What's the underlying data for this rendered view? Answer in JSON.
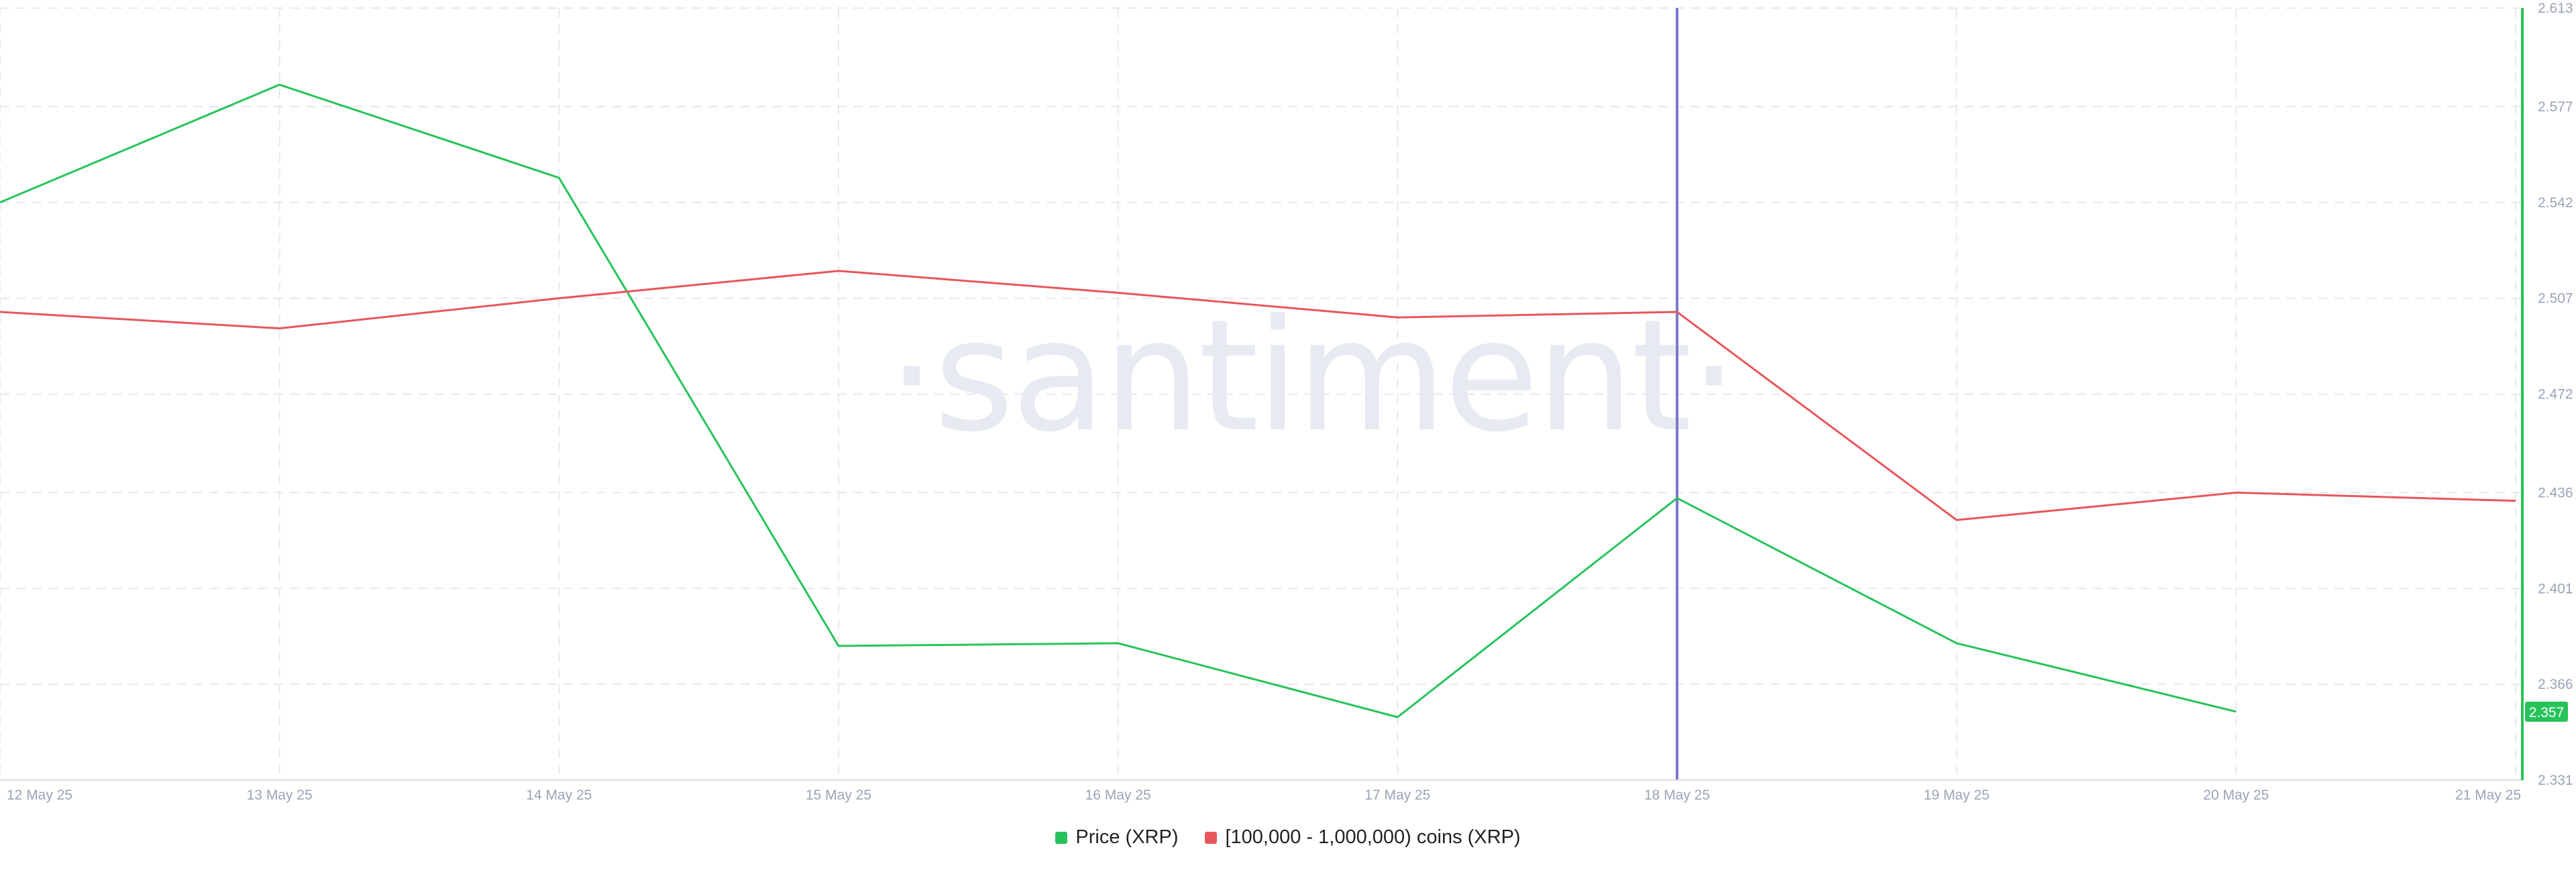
{
  "watermark": "·santiment·",
  "colors": {
    "price": "#26c35a",
    "holders": "#e8565a",
    "crosshair": "#7b77c9",
    "grid": "#e6e8ee",
    "badge": "#26c35a"
  },
  "legend": [
    {
      "label": "Price (XRP)",
      "color": "#26c35a"
    },
    {
      "label": "[100,000  - 1,000,000) coins (XRP)",
      "color": "#e8565a"
    }
  ],
  "chart_data": {
    "type": "line",
    "categories": [
      "12 May 25",
      "13 May 25",
      "14 May 25",
      "15 May 25",
      "16 May 25",
      "17 May 25",
      "18 May 25",
      "19 May 25",
      "20 May 25",
      "21 May 25"
    ],
    "y_ticks": [
      "2.331",
      "2.366",
      "2.401",
      "2.436",
      "2.472",
      "2.507",
      "2.542",
      "2.577",
      "2.613"
    ],
    "ylim": [
      2.331,
      2.613
    ],
    "y_axis_side": "right",
    "grid": true,
    "legend_position": "bottom-center",
    "crosshair_category": "18 May 25",
    "last_value_badge": "2.357",
    "series": [
      {
        "name": "Price (XRP)",
        "axis": "right",
        "values": [
          2.542,
          2.585,
          2.551,
          2.38,
          2.381,
          2.354,
          2.434,
          2.381,
          2.356,
          null
        ]
      },
      {
        "name": "[100,000  - 1,000,000) coins (XRP)",
        "axis": "hidden",
        "values": [
          2.502,
          2.496,
          2.507,
          2.517,
          2.509,
          2.5,
          2.502,
          2.426,
          2.436,
          2.433
        ]
      }
    ]
  }
}
